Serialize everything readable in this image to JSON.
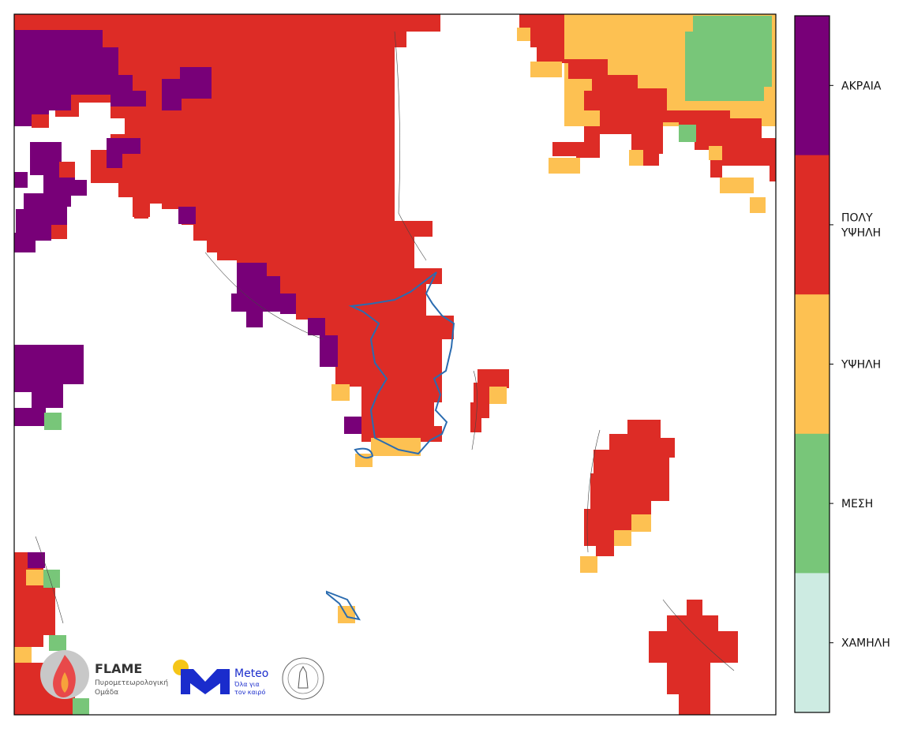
{
  "legend": {
    "items": [
      {
        "lines": [
          "ΑΚΡΑΙΑ"
        ],
        "color": "#780078"
      },
      {
        "lines": [
          "ΠΟΛΥ",
          "ΥΨΗΛΗ"
        ],
        "color": "#dd2c26"
      },
      {
        "lines": [
          "ΥΨΗΛΗ"
        ],
        "color": "#fdc152"
      },
      {
        "lines": [
          "ΜΕΣΗ"
        ],
        "color": "#78c679"
      },
      {
        "lines": [
          "ΧΑΜΗΛΗ"
        ],
        "color": "#cdebe2"
      }
    ]
  },
  "logos": {
    "flame": {
      "name": "FLAME",
      "subtitle_lines": [
        "Πυρομετεωρολογική",
        "Ομάδα"
      ]
    },
    "meteo": {
      "name": "Meteo",
      "slogan_lines": [
        "Όλα για",
        "τον καιρό"
      ]
    }
  }
}
